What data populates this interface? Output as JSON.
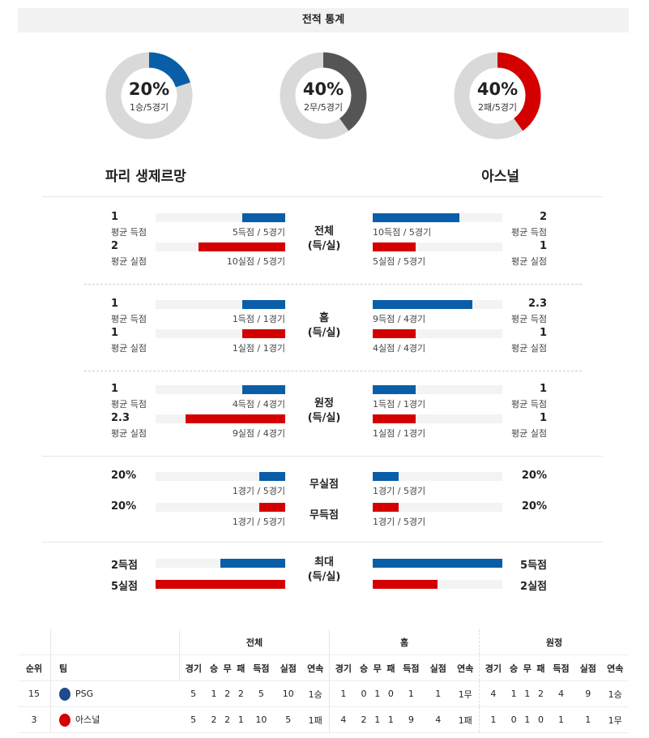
{
  "title": "전적 통계",
  "colors": {
    "blue": "#0a5ea8",
    "red": "#d40000",
    "gray": "#555555",
    "track": "#d9d9d9"
  },
  "donuts": [
    {
      "pct": "20%",
      "sub": "1승/5경기",
      "value": 0.2,
      "color": "#0a5ea8"
    },
    {
      "pct": "40%",
      "sub": "2무/5경기",
      "value": 0.4,
      "color": "#555555"
    },
    {
      "pct": "40%",
      "sub": "2패/5경기",
      "value": 0.4,
      "color": "#d40000"
    }
  ],
  "teams": {
    "left": "파리 생제르망",
    "right": "아스널"
  },
  "sections": [
    {
      "title": [
        "전체",
        "(득/실)"
      ],
      "rows": [
        {
          "l_num": "1",
          "l_lbl": "평균 득점",
          "l_cap": "5득점 / 5경기",
          "l_fill": 0.33,
          "r_num": "2",
          "r_lbl": "평균 득점",
          "r_cap": "10득점 / 5경기",
          "r_fill": 0.67,
          "color": "#0a5ea8"
        },
        {
          "l_num": "2",
          "l_lbl": "평균 실점",
          "l_cap": "10실점 / 5경기",
          "l_fill": 0.67,
          "r_num": "1",
          "r_lbl": "평균 실점",
          "r_cap": "5실점 / 5경기",
          "r_fill": 0.33,
          "color": "#d40000"
        }
      ]
    },
    {
      "title": [
        "홈",
        "(득/실)"
      ],
      "rows": [
        {
          "l_num": "1",
          "l_lbl": "평균 득점",
          "l_cap": "1득점 / 1경기",
          "l_fill": 0.33,
          "r_num": "2.3",
          "r_lbl": "평균 득점",
          "r_cap": "9득점 / 4경기",
          "r_fill": 0.77,
          "color": "#0a5ea8"
        },
        {
          "l_num": "1",
          "l_lbl": "평균 실점",
          "l_cap": "1실점 / 1경기",
          "l_fill": 0.33,
          "r_num": "1",
          "r_lbl": "평균 실점",
          "r_cap": "4실점 / 4경기",
          "r_fill": 0.33,
          "color": "#d40000"
        }
      ]
    },
    {
      "title": [
        "원정",
        "(득/실)"
      ],
      "rows": [
        {
          "l_num": "1",
          "l_lbl": "평균 득점",
          "l_cap": "4득점 / 4경기",
          "l_fill": 0.33,
          "r_num": "1",
          "r_lbl": "평균 득점",
          "r_cap": "1득점 / 1경기",
          "r_fill": 0.33,
          "color": "#0a5ea8"
        },
        {
          "l_num": "2.3",
          "l_lbl": "평균 실점",
          "l_cap": "9실점 / 4경기",
          "l_fill": 0.77,
          "r_num": "1",
          "r_lbl": "평균 실점",
          "r_cap": "1실점 / 1경기",
          "r_fill": 0.33,
          "color": "#d40000"
        }
      ]
    }
  ],
  "clean": [
    {
      "title": "무실점",
      "l_num": "20%",
      "l_cap": "1경기 / 5경기",
      "l_fill": 0.2,
      "r_num": "20%",
      "r_cap": "1경기 / 5경기",
      "r_fill": 0.2,
      "color": "#0a5ea8"
    },
    {
      "title": "무득점",
      "l_num": "20%",
      "l_cap": "1경기 / 5경기",
      "l_fill": 0.2,
      "r_num": "20%",
      "r_cap": "1경기 / 5경기",
      "r_fill": 0.2,
      "color": "#d40000"
    }
  ],
  "max": {
    "title": [
      "최대",
      "(득/실)"
    ],
    "rows": [
      {
        "l_num": "2득점",
        "l_fill": 0.5,
        "r_num": "5득점",
        "r_fill": 1.0,
        "color": "#0a5ea8"
      },
      {
        "l_num": "5실점",
        "l_fill": 1.0,
        "r_num": "2실점",
        "r_fill": 0.5,
        "color": "#d40000"
      }
    ]
  },
  "table": {
    "groups": [
      "전체",
      "홈",
      "원정"
    ],
    "headers": [
      "순위",
      "팀"
    ],
    "cols": [
      "경기",
      "승",
      "무",
      "패",
      "득점",
      "실점",
      "연속"
    ],
    "rows": [
      {
        "rank": "15",
        "team": "PSG",
        "crest": "#1f4a8c",
        "vals": [
          "5",
          "1",
          "2",
          "2",
          "5",
          "10",
          "1승",
          "1",
          "0",
          "1",
          "0",
          "1",
          "1",
          "1무",
          "4",
          "1",
          "1",
          "2",
          "4",
          "9",
          "1승"
        ]
      },
      {
        "rank": "3",
        "team": "아스널",
        "crest": "#d40000",
        "vals": [
          "5",
          "2",
          "2",
          "1",
          "10",
          "5",
          "1패",
          "4",
          "2",
          "1",
          "1",
          "9",
          "4",
          "1패",
          "1",
          "0",
          "1",
          "0",
          "1",
          "1",
          "1무"
        ]
      }
    ]
  }
}
